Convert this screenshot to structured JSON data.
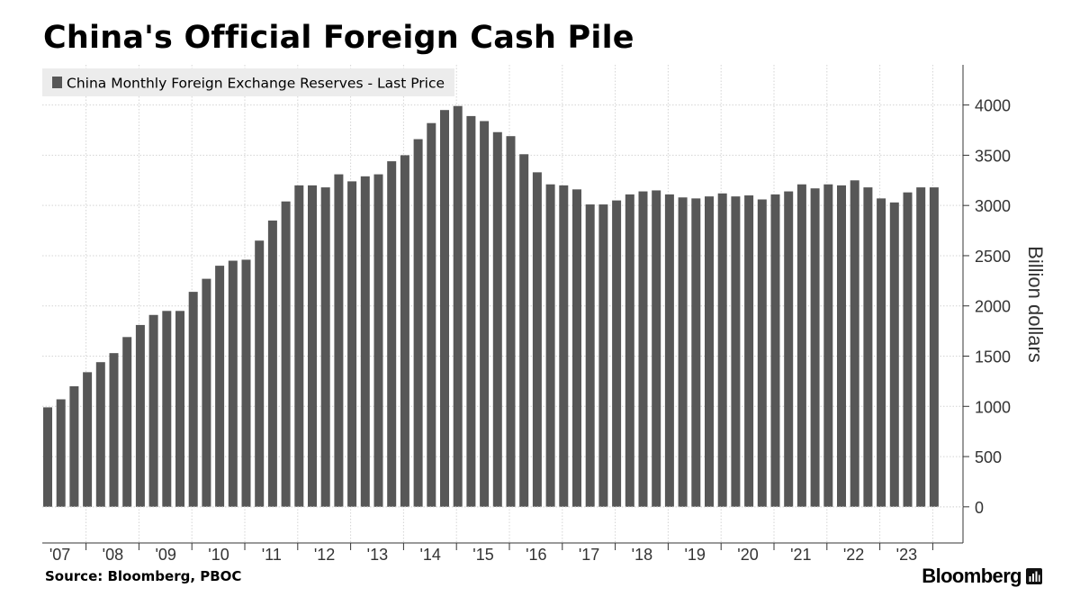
{
  "title": "China's Official Foreign Cash Pile",
  "source": "Source: Bloomberg, PBOC",
  "brand": {
    "name": "Bloomberg",
    "icon": "bloomberg-terminal-icon"
  },
  "colors": {
    "bar": "#575757",
    "grid": "#d4d4d4",
    "legend_bg": "#ececec",
    "text": "#000000",
    "tick_text": "#333333"
  },
  "chart_data": {
    "type": "bar",
    "title": "China's Official Foreign Cash Pile",
    "ylabel": "Billion dollars",
    "ylim": [
      -360,
      4400
    ],
    "yticks": [
      0,
      500,
      1000,
      1500,
      2000,
      2500,
      3000,
      3500,
      4000
    ],
    "grid": true,
    "legend_position": "top-left",
    "x_axis_labels": [
      "'07",
      "'08",
      "'09",
      "'10",
      "'11",
      "'12",
      "'13",
      "'14",
      "'15",
      "'16",
      "'17",
      "'18",
      "'19",
      "'20",
      "'21",
      "'22",
      "'23"
    ],
    "series": [
      {
        "name": "China Monthly Foreign Exchange Reserves - Last Price",
        "values": [
          990,
          1070,
          1200,
          1340,
          1440,
          1530,
          1690,
          1810,
          1910,
          1950,
          1950,
          2140,
          2270,
          2400,
          2450,
          2460,
          2650,
          2850,
          3040,
          3200,
          3200,
          3180,
          3310,
          3240,
          3290,
          3310,
          3440,
          3500,
          3660,
          3820,
          3950,
          3990,
          3890,
          3840,
          3730,
          3690,
          3510,
          3330,
          3210,
          3200,
          3160,
          3010,
          3010,
          3050,
          3110,
          3140,
          3150,
          3110,
          3080,
          3070,
          3090,
          3120,
          3090,
          3100,
          3060,
          3110,
          3140,
          3210,
          3170,
          3210,
          3200,
          3250,
          3180,
          3070,
          3030,
          3130,
          3180,
          3180
        ]
      }
    ]
  }
}
